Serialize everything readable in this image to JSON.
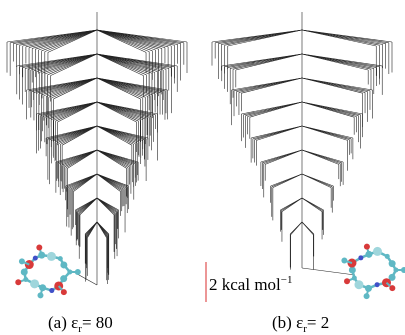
{
  "figure": {
    "panels": [
      {
        "caption": {
          "prefix": "(a) ε",
          "subscript": "r",
          "suffix": "= 80"
        }
      },
      {
        "caption": {
          "prefix": "(b) ε",
          "subscript": "r",
          "suffix": "= 2"
        }
      }
    ],
    "scale_bar": {
      "text": "2 kcal mol",
      "superscript": "−1"
    }
  }
}
